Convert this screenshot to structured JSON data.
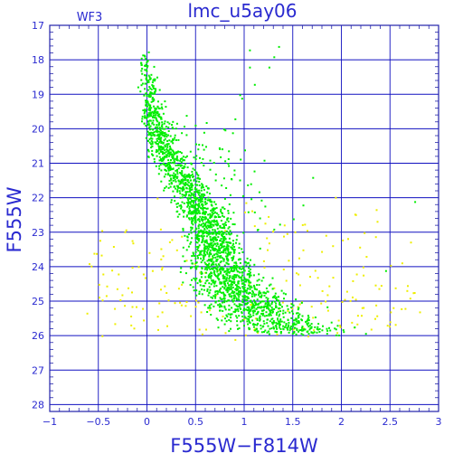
{
  "chart_data": {
    "type": "scatter",
    "title": "lmc_u5ay06",
    "chip_label": "WF3",
    "xlabel": "F555W−F814W",
    "ylabel": "F555W",
    "xlim": [
      -1,
      3
    ],
    "ylim": [
      28.2,
      17
    ],
    "y_inverted": true,
    "grid": true,
    "xticks": [
      -1,
      -0.5,
      0,
      0.5,
      1,
      1.5,
      2,
      2.5,
      3
    ],
    "xtick_labels": [
      "−1",
      "−0.5",
      "0",
      "0.5",
      "1",
      "1.5",
      "2",
      "2.5",
      "3"
    ],
    "yticks": [
      17,
      18,
      19,
      20,
      21,
      22,
      23,
      24,
      25,
      26,
      27,
      28
    ],
    "ytick_labels": [
      "17",
      "18",
      "19",
      "20",
      "21",
      "22",
      "23",
      "24",
      "25",
      "26",
      "27",
      "28"
    ],
    "colors": {
      "frame": "#2222aa",
      "grid": "#1010c0",
      "text": "#2a2ad0",
      "main": "#00ee00",
      "faint": "#eeee00"
    },
    "series": [
      {
        "role": "main",
        "color": "#00ee00",
        "ridge": [
          [
            17.7,
            -0.02
          ],
          [
            18.5,
            0.0
          ],
          [
            19.5,
            0.05
          ],
          [
            20.5,
            0.15
          ],
          [
            21.3,
            0.33
          ],
          [
            22.0,
            0.48
          ],
          [
            22.7,
            0.6
          ],
          [
            23.3,
            0.68
          ],
          [
            24.0,
            0.76
          ],
          [
            24.6,
            0.88
          ],
          [
            25.1,
            1.05
          ],
          [
            25.5,
            1.25
          ],
          [
            25.9,
            1.55
          ]
        ],
        "points": [
          [
            1.05,
            17.7
          ],
          [
            1.05,
            18.2
          ],
          [
            1.1,
            18.7
          ],
          [
            0.95,
            19.0
          ],
          [
            0.97,
            19.1
          ],
          [
            1.25,
            18.2
          ],
          [
            1.3,
            17.9
          ],
          [
            1.35,
            17.6
          ],
          [
            0.9,
            19.7
          ],
          [
            1.0,
            20.6
          ],
          [
            1.2,
            20.9
          ],
          [
            1.7,
            21.4
          ],
          [
            1.6,
            22.2
          ],
          [
            1.5,
            22.6
          ],
          [
            2.75,
            22.1
          ],
          [
            2.45,
            24.1
          ],
          [
            0.45,
            21.0
          ],
          [
            0.6,
            20.5
          ],
          [
            0.35,
            20.1
          ],
          [
            0.4,
            19.6
          ],
          [
            0.75,
            20.8
          ],
          [
            0.7,
            21.3
          ],
          [
            0.85,
            21.9
          ],
          [
            1.1,
            22.4
          ],
          [
            1.3,
            22.9
          ],
          [
            1.7,
            25.9
          ],
          [
            1.8,
            25.7
          ],
          [
            1.4,
            24.9
          ],
          [
            1.55,
            25.4
          ]
        ]
      },
      {
        "role": "faint",
        "color": "#eeee00",
        "points": [
          [
            -0.55,
            23.6
          ],
          [
            -0.6,
            23.9
          ],
          [
            -0.5,
            24.5
          ],
          [
            -0.35,
            23.4
          ],
          [
            -0.3,
            24.2
          ],
          [
            -0.15,
            23.3
          ],
          [
            -0.2,
            24.6
          ],
          [
            0.15,
            24.0
          ],
          [
            0.15,
            25.3
          ],
          [
            0.2,
            25.7
          ],
          [
            0.35,
            24.5
          ],
          [
            0.4,
            25.0
          ],
          [
            0.55,
            25.3
          ],
          [
            0.55,
            24.4
          ],
          [
            0.6,
            25.8
          ],
          [
            0.1,
            22.0
          ],
          [
            0.25,
            23.2
          ],
          [
            0.3,
            23.5
          ],
          [
            0.4,
            23.8
          ],
          [
            1.0,
            22.4
          ],
          [
            1.1,
            22.8
          ],
          [
            1.25,
            23.3
          ],
          [
            1.4,
            23.1
          ],
          [
            1.45,
            23.8
          ],
          [
            1.55,
            24.2
          ],
          [
            1.6,
            23.5
          ],
          [
            1.75,
            24.3
          ],
          [
            1.85,
            24.8
          ],
          [
            2.0,
            25.0
          ],
          [
            2.05,
            24.7
          ],
          [
            2.15,
            24.2
          ],
          [
            2.2,
            25.4
          ],
          [
            2.3,
            25.8
          ],
          [
            2.35,
            25.1
          ],
          [
            2.5,
            25.3
          ],
          [
            2.55,
            24.6
          ],
          [
            2.65,
            25.2
          ],
          [
            2.7,
            24.9
          ],
          [
            2.8,
            25.3
          ],
          [
            1.95,
            25.9
          ],
          [
            2.1,
            25.6
          ],
          [
            1.2,
            24.0
          ],
          [
            1.3,
            24.6
          ],
          [
            1.35,
            25.2
          ],
          [
            0.8,
            25.9
          ],
          [
            0.9,
            26.1
          ],
          [
            1.5,
            25.8
          ],
          [
            1.65,
            26.0
          ],
          [
            0.05,
            24.1
          ],
          [
            -0.05,
            25.2
          ]
        ]
      }
    ]
  }
}
